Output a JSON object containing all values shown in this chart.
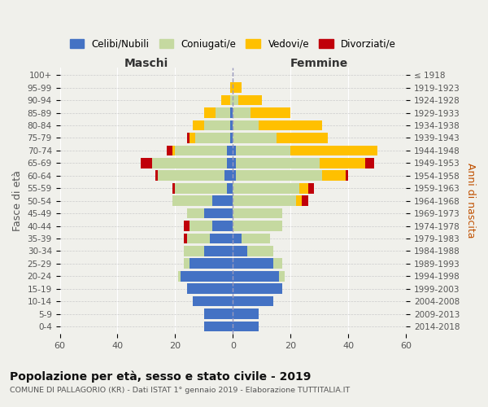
{
  "age_groups": [
    "0-4",
    "5-9",
    "10-14",
    "15-19",
    "20-24",
    "25-29",
    "30-34",
    "35-39",
    "40-44",
    "45-49",
    "50-54",
    "55-59",
    "60-64",
    "65-69",
    "70-74",
    "75-79",
    "80-84",
    "85-89",
    "90-94",
    "95-99",
    "100+"
  ],
  "birth_years": [
    "2014-2018",
    "2009-2013",
    "2004-2008",
    "1999-2003",
    "1994-1998",
    "1989-1993",
    "1984-1988",
    "1979-1983",
    "1974-1978",
    "1969-1973",
    "1964-1968",
    "1959-1963",
    "1954-1958",
    "1949-1953",
    "1944-1948",
    "1939-1943",
    "1934-1938",
    "1929-1933",
    "1924-1928",
    "1919-1923",
    "≤ 1918"
  ],
  "colors": {
    "celibe": "#4472c4",
    "coniugato": "#c5d9a0",
    "vedovo": "#ffc000",
    "divorziato": "#c0000a"
  },
  "males": {
    "celibe": [
      10,
      10,
      14,
      16,
      18,
      15,
      10,
      8,
      7,
      10,
      7,
      2,
      3,
      2,
      2,
      1,
      1,
      1,
      0,
      0,
      0
    ],
    "coniugato": [
      0,
      0,
      0,
      0,
      1,
      2,
      7,
      8,
      8,
      6,
      14,
      18,
      23,
      26,
      18,
      12,
      9,
      5,
      1,
      0,
      0
    ],
    "vedovo": [
      0,
      0,
      0,
      0,
      0,
      0,
      0,
      0,
      0,
      0,
      0,
      0,
      0,
      0,
      1,
      2,
      4,
      4,
      3,
      1,
      0
    ],
    "divorziato": [
      0,
      0,
      0,
      0,
      0,
      0,
      0,
      1,
      2,
      0,
      0,
      1,
      1,
      4,
      2,
      1,
      0,
      0,
      0,
      0,
      0
    ]
  },
  "females": {
    "nubile": [
      9,
      9,
      14,
      17,
      16,
      14,
      5,
      3,
      0,
      0,
      0,
      0,
      1,
      1,
      1,
      0,
      0,
      0,
      0,
      0,
      0
    ],
    "coniugata": [
      0,
      0,
      0,
      0,
      2,
      3,
      9,
      10,
      17,
      17,
      22,
      23,
      30,
      29,
      19,
      15,
      9,
      6,
      2,
      0,
      0
    ],
    "vedova": [
      0,
      0,
      0,
      0,
      0,
      0,
      0,
      0,
      0,
      0,
      2,
      3,
      8,
      16,
      30,
      18,
      22,
      14,
      8,
      3,
      0
    ],
    "divorziata": [
      0,
      0,
      0,
      0,
      0,
      0,
      0,
      0,
      0,
      0,
      2,
      2,
      1,
      3,
      0,
      0,
      0,
      0,
      0,
      0,
      0
    ]
  },
  "xlim": 60,
  "title": "Popolazione per età, sesso e stato civile - 2019",
  "subtitle": "COMUNE DI PALLAGORIO (KR) - Dati ISTAT 1° gennaio 2019 - Elaborazione TUTTITALIA.IT",
  "ylabel_left": "Fasce di età",
  "ylabel_right": "Anni di nascita",
  "header_left": "Maschi",
  "header_right": "Femmine",
  "legend_labels": [
    "Celibi/Nubili",
    "Coniugati/e",
    "Vedovi/e",
    "Divorziati/e"
  ],
  "bg_color": "#f0f0eb",
  "bar_height": 0.82
}
